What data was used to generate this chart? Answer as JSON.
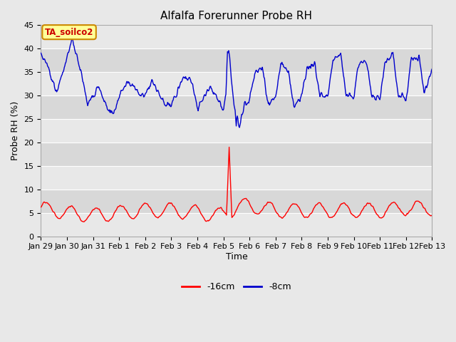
{
  "title": "Alfalfa Forerunner Probe RH",
  "xlabel": "Time",
  "ylabel": "Probe RH (%)",
  "ylim": [
    0,
    45
  ],
  "yticks": [
    0,
    5,
    10,
    15,
    20,
    25,
    30,
    35,
    40,
    45
  ],
  "x_labels": [
    "Jan 29",
    "Jan 30",
    "Jan 31",
    "Feb 1",
    "Feb 2",
    "Feb 3",
    "Feb 4",
    "Feb 5",
    "Feb 6",
    "Feb 7",
    "Feb 8",
    "Feb 9",
    "Feb 10",
    "Feb 11",
    "Feb 12",
    "Feb 13"
  ],
  "n_days": 15,
  "bg_color": "#e8e8e8",
  "plot_bg_color": "#f0f0f0",
  "band_colors": [
    "#e8e8e8",
    "#d8d8d8"
  ],
  "grid_color": "#ffffff",
  "legend_label_16cm": "-16cm",
  "legend_label_8cm": "-8cm",
  "legend_color_16cm": "#ff0000",
  "legend_color_8cm": "#0000cc",
  "annotation_text": "TA_soilco2",
  "annotation_bg": "#ffff99",
  "annotation_border": "#cc8800",
  "annotation_text_color": "#cc0000",
  "title_fontsize": 11,
  "axis_label_fontsize": 9,
  "tick_fontsize": 8,
  "legend_fontsize": 9
}
